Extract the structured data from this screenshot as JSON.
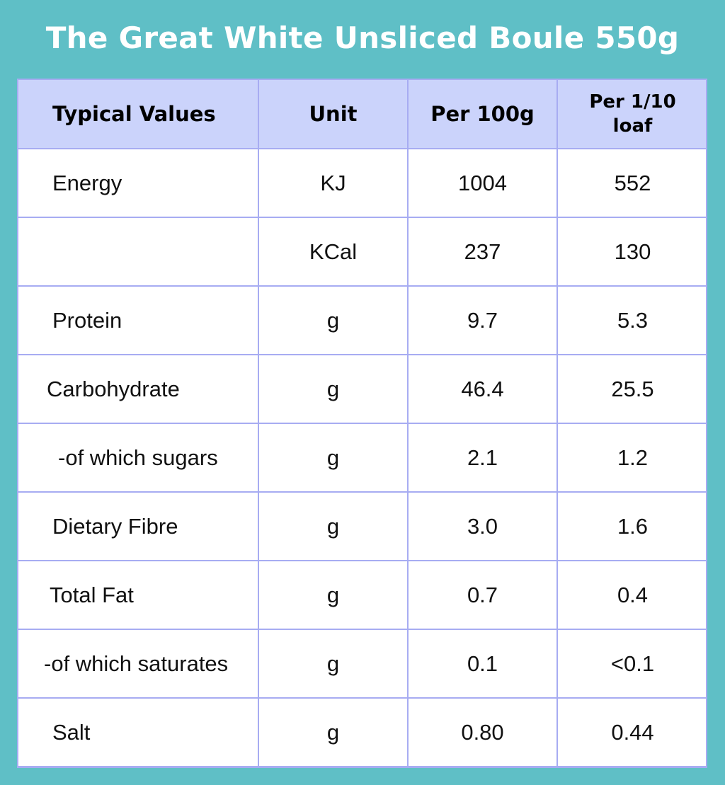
{
  "title": "The Great White Unsliced Boule 550g",
  "table": {
    "headers": [
      "Typical Values",
      "Unit",
      "Per 100g",
      "Per 1/10 loaf"
    ],
    "rows": [
      {
        "nutrient": "Energy",
        "unit": "KJ",
        "per100g": "1004",
        "perTenth": "552"
      },
      {
        "nutrient": "",
        "unit": "KCal",
        "per100g": "237",
        "perTenth": "130"
      },
      {
        "nutrient": "Protein",
        "unit": "g",
        "per100g": "9.7",
        "perTenth": "5.3"
      },
      {
        "nutrient": "Carbohydrate",
        "unit": "g",
        "per100g": "46.4",
        "perTenth": "25.5"
      },
      {
        "nutrient": "-of which sugars",
        "unit": "g",
        "per100g": "2.1",
        "perTenth": "1.2"
      },
      {
        "nutrient": "Dietary Fibre",
        "unit": "g",
        "per100g": "3.0",
        "perTenth": "1.6"
      },
      {
        "nutrient": "Total Fat",
        "unit": "g",
        "per100g": "0.7",
        "perTenth": "0.4"
      },
      {
        "nutrient": "-of which saturates",
        "unit": "g",
        "per100g": "0.1",
        "perTenth": "<0.1"
      },
      {
        "nutrient": "Salt",
        "unit": "g",
        "per100g": "0.80",
        "perTenth": "0.44"
      }
    ]
  },
  "colors": {
    "background": "#5fbfc6",
    "header_fill": "#cbd3fb",
    "grid_lines": "#a7acf2",
    "title_text": "#ffffff"
  }
}
